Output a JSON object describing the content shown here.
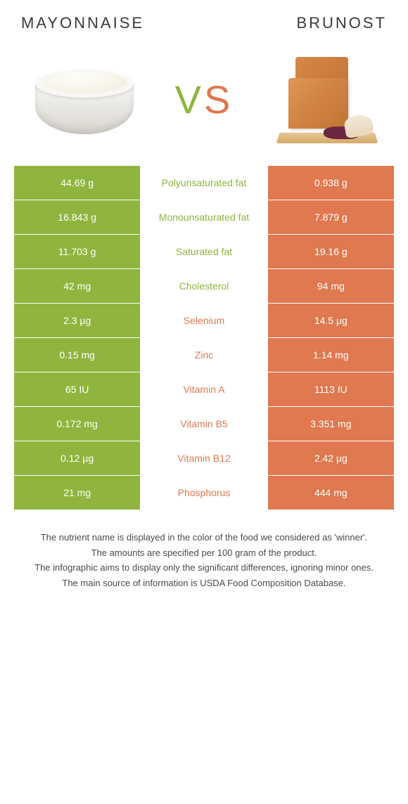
{
  "foods": {
    "left": {
      "name": "MAYONNAISE"
    },
    "right": {
      "name": "BRUNOST"
    }
  },
  "vs": {
    "v": "V",
    "s": "S"
  },
  "colors": {
    "left": "#8fb53e",
    "right": "#e07850",
    "bg": "#ffffff"
  },
  "rows": [
    {
      "left": "44.69 g",
      "label": "Polyunsaturated fat",
      "right": "0.938 g",
      "winner": "left"
    },
    {
      "left": "16.843 g",
      "label": "Monounsaturated fat",
      "right": "7.879 g",
      "winner": "left"
    },
    {
      "left": "11.703 g",
      "label": "Saturated fat",
      "right": "19.16 g",
      "winner": "left"
    },
    {
      "left": "42 mg",
      "label": "Cholesterol",
      "right": "94 mg",
      "winner": "left"
    },
    {
      "left": "2.3 µg",
      "label": "Selenium",
      "right": "14.5 µg",
      "winner": "right"
    },
    {
      "left": "0.15 mg",
      "label": "Zinc",
      "right": "1.14 mg",
      "winner": "right"
    },
    {
      "left": "65 IU",
      "label": "Vitamin A",
      "right": "1113 IU",
      "winner": "right"
    },
    {
      "left": "0.172 mg",
      "label": "Vitamin B5",
      "right": "3.351 mg",
      "winner": "right"
    },
    {
      "left": "0.12 µg",
      "label": "Vitamin B12",
      "right": "2.42 µg",
      "winner": "right"
    },
    {
      "left": "21 mg",
      "label": "Phosphorus",
      "right": "444 mg",
      "winner": "right"
    }
  ],
  "footnotes": [
    "The nutrient name is displayed in the color of the food we considered as 'winner'.",
    "The amounts are specified per 100 gram of the product.",
    "The infographic aims to display only the significant differences, ignoring minor ones.",
    "The main source of information is USDA Food Composition Database."
  ]
}
